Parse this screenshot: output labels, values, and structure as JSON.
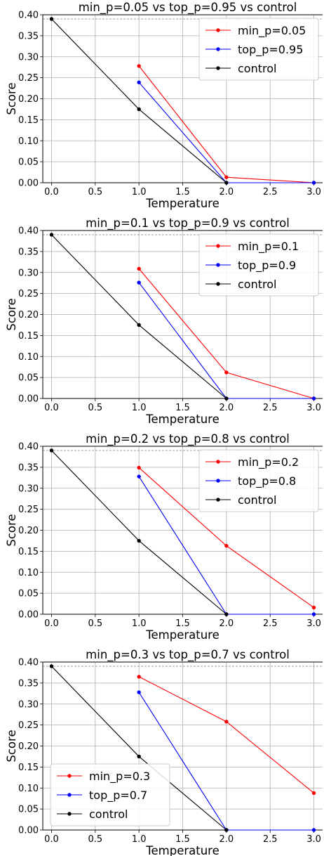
{
  "chart_data": [
    {
      "type": "line",
      "title": "min_p=0.05 vs top_p=0.95 vs control",
      "xlabel": "Temperature",
      "ylabel": "Score",
      "xlim": [
        -0.1,
        3.1
      ],
      "ylim": [
        0.0,
        0.4
      ],
      "xticks": [
        "0.0",
        "0.5",
        "1.0",
        "1.5",
        "2.0",
        "2.5",
        "3.0"
      ],
      "yticks": [
        "0.00",
        "0.05",
        "0.10",
        "0.15",
        "0.20",
        "0.25",
        "0.30",
        "0.35",
        "0.40"
      ],
      "grid": true,
      "legend": "top-right",
      "reference_line": 0.39,
      "series": [
        {
          "name": "min_p=0.05",
          "color": "#ff0000",
          "x": [
            1.0,
            2.0,
            3.0
          ],
          "y": [
            0.278,
            0.013,
            0.0
          ]
        },
        {
          "name": "top_p=0.95",
          "color": "#0000ff",
          "x": [
            1.0,
            2.0,
            3.0
          ],
          "y": [
            0.239,
            0.0,
            0.0
          ]
        },
        {
          "name": "control",
          "color": "#000000",
          "x": [
            0.0,
            1.0,
            2.0
          ],
          "y": [
            0.39,
            0.175,
            0.0
          ]
        }
      ]
    },
    {
      "type": "line",
      "title": "min_p=0.1 vs top_p=0.9 vs control",
      "xlabel": "Temperature",
      "ylabel": "Score",
      "xlim": [
        -0.1,
        3.1
      ],
      "ylim": [
        0.0,
        0.4
      ],
      "xticks": [
        "0.0",
        "0.5",
        "1.0",
        "1.5",
        "2.0",
        "2.5",
        "3.0"
      ],
      "yticks": [
        "0.00",
        "0.05",
        "0.10",
        "0.15",
        "0.20",
        "0.25",
        "0.30",
        "0.35",
        "0.40"
      ],
      "grid": true,
      "legend": "top-right",
      "reference_line": 0.39,
      "series": [
        {
          "name": "min_p=0.1",
          "color": "#ff0000",
          "x": [
            1.0,
            2.0,
            3.0
          ],
          "y": [
            0.309,
            0.062,
            0.0
          ]
        },
        {
          "name": "top_p=0.9",
          "color": "#0000ff",
          "x": [
            1.0,
            2.0,
            3.0
          ],
          "y": [
            0.276,
            0.0,
            0.0
          ]
        },
        {
          "name": "control",
          "color": "#000000",
          "x": [
            0.0,
            1.0,
            2.0
          ],
          "y": [
            0.39,
            0.175,
            0.0
          ]
        }
      ]
    },
    {
      "type": "line",
      "title": "min_p=0.2 vs top_p=0.8 vs control",
      "xlabel": "Temperature",
      "ylabel": "Score",
      "xlim": [
        -0.1,
        3.1
      ],
      "ylim": [
        0.0,
        0.4
      ],
      "xticks": [
        "0.0",
        "0.5",
        "1.0",
        "1.5",
        "2.0",
        "2.5",
        "3.0"
      ],
      "yticks": [
        "0.00",
        "0.05",
        "0.10",
        "0.15",
        "0.20",
        "0.25",
        "0.30",
        "0.35",
        "0.40"
      ],
      "grid": true,
      "legend": "top-right",
      "reference_line": 0.39,
      "series": [
        {
          "name": "min_p=0.2",
          "color": "#ff0000",
          "x": [
            1.0,
            2.0,
            3.0
          ],
          "y": [
            0.349,
            0.163,
            0.016
          ]
        },
        {
          "name": "top_p=0.8",
          "color": "#0000ff",
          "x": [
            1.0,
            2.0,
            3.0
          ],
          "y": [
            0.328,
            0.0,
            0.0
          ]
        },
        {
          "name": "control",
          "color": "#000000",
          "x": [
            0.0,
            1.0,
            2.0
          ],
          "y": [
            0.39,
            0.175,
            0.0
          ]
        }
      ]
    },
    {
      "type": "line",
      "title": "min_p=0.3 vs top_p=0.7 vs control",
      "xlabel": "Temperature",
      "ylabel": "Score",
      "xlim": [
        -0.1,
        3.1
      ],
      "ylim": [
        0.0,
        0.4
      ],
      "xticks": [
        "0.0",
        "0.5",
        "1.0",
        "1.5",
        "2.0",
        "2.5",
        "3.0"
      ],
      "yticks": [
        "0.00",
        "0.05",
        "0.10",
        "0.15",
        "0.20",
        "0.25",
        "0.30",
        "0.35",
        "0.40"
      ],
      "grid": true,
      "legend": "bottom-left",
      "reference_line": 0.39,
      "series": [
        {
          "name": "min_p=0.3",
          "color": "#ff0000",
          "x": [
            1.0,
            2.0,
            3.0
          ],
          "y": [
            0.365,
            0.258,
            0.088
          ]
        },
        {
          "name": "top_p=0.7",
          "color": "#0000ff",
          "x": [
            1.0,
            2.0,
            3.0
          ],
          "y": [
            0.328,
            0.0,
            0.0
          ]
        },
        {
          "name": "control",
          "color": "#000000",
          "x": [
            0.0,
            1.0,
            2.0
          ],
          "y": [
            0.39,
            0.175,
            0.0
          ]
        }
      ]
    }
  ]
}
